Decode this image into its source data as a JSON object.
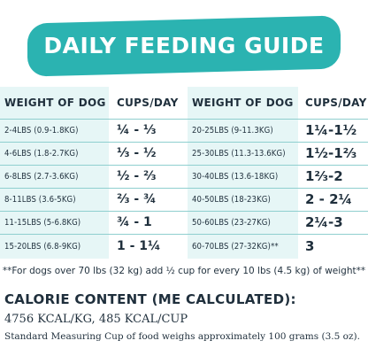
{
  "banner": {
    "title": "DAILY FEEDING GUIDE",
    "color": "#2bb3b1"
  },
  "table": {
    "headers": {
      "weight_left": "WEIGHT OF DOG",
      "cups_left": "CUPS/DAY",
      "weight_right": "WEIGHT OF DOG",
      "cups_right": "CUPS/DAY"
    },
    "left_rows": [
      {
        "weight": "2-4LBS (0.9-1.8KG)",
        "cups": "¼ - ⅓"
      },
      {
        "weight": "4-6LBS (1.8-2.7KG)",
        "cups": "⅓ - ½"
      },
      {
        "weight": "6-8LBS (2.7-3.6KG)",
        "cups": "½ - ⅔"
      },
      {
        "weight": "8-11LBS (3.6-5KG)",
        "cups": "⅔ - ¾"
      },
      {
        "weight": "11-15LBS (5-6.8KG)",
        "cups": "¾ - 1"
      },
      {
        "weight": "15-20LBS (6.8-9KG)",
        "cups": "1 - 1¼"
      }
    ],
    "right_rows": [
      {
        "weight": "20-25LBS (9-11.3KG)",
        "cups": "1¼-1½"
      },
      {
        "weight": "25-30LBS (11.3-13.6KG)",
        "cups": "1½-1⅔"
      },
      {
        "weight": "30-40LBS (13.6-18KG)",
        "cups": "1⅔-2"
      },
      {
        "weight": "40-50LBS (18-23KG)",
        "cups": "2 - 2¼"
      },
      {
        "weight": "50-60LBS (23-27KG)",
        "cups": "2¼-3"
      },
      {
        "weight": "60-70LBS (27-32KG)**",
        "cups": "3"
      }
    ],
    "band_color": "#e6f6f6",
    "line_color": "#8fcfcf"
  },
  "note": "**For dogs over 70 lbs (32 kg) add ½ cup for every 10 lbs (4.5 kg) of weight**",
  "calorie": {
    "heading": "CALORIE CONTENT (ME CALCULATED):",
    "value": "4756 KCAL/KG, 485 KCAL/CUP",
    "measure": "Standard Measuring Cup of food weighs approximately 100 grams (3.5 oz)."
  }
}
